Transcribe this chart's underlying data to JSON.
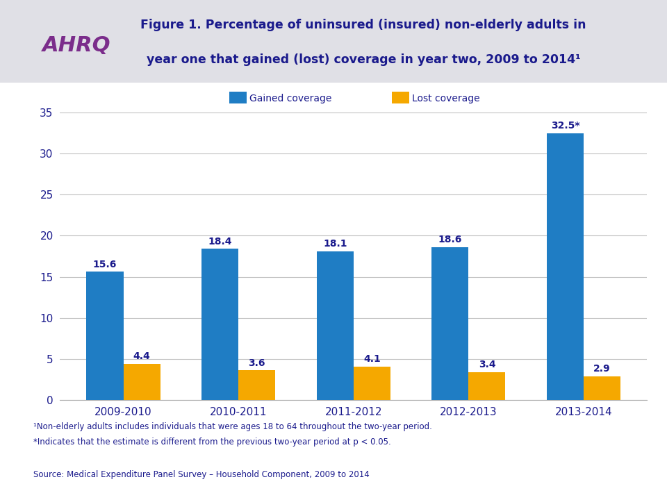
{
  "title_line1": "Figure 1. Percentage of uninsured (insured) non-elderly adults in",
  "title_line2": "year one that gained (lost) coverage in year two, 2009 to 2014¹",
  "categories": [
    "2009-2010",
    "2010-2011",
    "2011-2012",
    "2012-2013",
    "2013-2014"
  ],
  "gained_values": [
    15.6,
    18.4,
    18.1,
    18.6,
    32.5
  ],
  "lost_values": [
    4.4,
    3.6,
    4.1,
    3.4,
    2.9
  ],
  "gained_labels": [
    "15.6",
    "18.4",
    "18.1",
    "18.6",
    "32.5*"
  ],
  "lost_labels": [
    "4.4",
    "3.6",
    "4.1",
    "3.4",
    "2.9"
  ],
  "gained_color": "#1F7DC4",
  "lost_color": "#F5A800",
  "ylim": [
    0,
    35
  ],
  "yticks": [
    0,
    5,
    10,
    15,
    20,
    25,
    30,
    35
  ],
  "legend_gained": "Gained coverage",
  "legend_lost": "Lost coverage",
  "header_bg": "#E0E0E6",
  "text_color": "#1A1A8C",
  "footnote1": "¹Non-elderly adults includes individuals that were ages 18 to 64 throughout the two-year period.",
  "footnote2": "*Indicates that the estimate is different from the previous two-year period at p < 0.05.",
  "source": "Source: Medical Expenditure Panel Survey – Household Component, 2009 to 2014",
  "bar_width": 0.32,
  "ahrq_color": "#7B2D8B"
}
